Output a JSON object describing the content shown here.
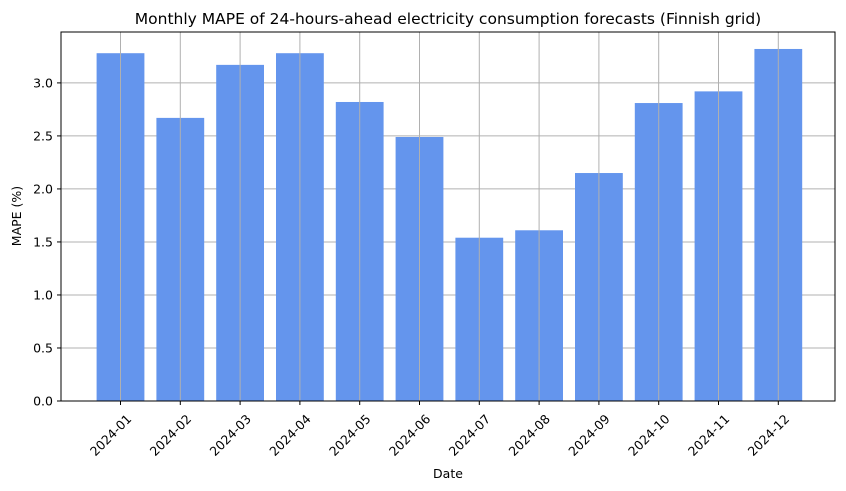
{
  "chart_data": {
    "type": "bar",
    "title": "Monthly MAPE of 24-hours-ahead electricity consumption forecasts (Finnish grid)",
    "xlabel": "Date",
    "ylabel": "MAPE (%)",
    "categories": [
      "2024-01",
      "2024-02",
      "2024-03",
      "2024-04",
      "2024-05",
      "2024-06",
      "2024-07",
      "2024-08",
      "2024-09",
      "2024-10",
      "2024-11",
      "2024-12"
    ],
    "values": [
      3.28,
      2.67,
      3.17,
      3.28,
      2.82,
      2.49,
      1.54,
      1.61,
      2.15,
      2.81,
      2.92,
      3.32
    ],
    "ylim": [
      0,
      3.48
    ],
    "yticks": [
      0.0,
      0.5,
      1.0,
      1.5,
      2.0,
      2.5,
      3.0
    ],
    "ytick_labels": [
      "0.0",
      "0.5",
      "1.0",
      "1.5",
      "2.0",
      "2.5",
      "3.0"
    ],
    "grid": true,
    "bar_color": "#6495ED"
  }
}
